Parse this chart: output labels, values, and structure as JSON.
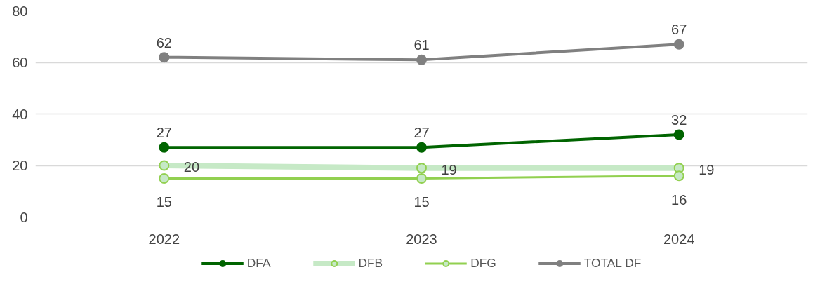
{
  "chart_data": {
    "type": "line",
    "categories": [
      "2022",
      "2023",
      "2024"
    ],
    "series": [
      {
        "name": "DFA",
        "color": "#006400",
        "values": [
          27,
          27,
          32
        ]
      },
      {
        "name": "DFB",
        "color": "#c6e9c6",
        "values": [
          20,
          19,
          19
        ]
      },
      {
        "name": "DFG",
        "color": "#92d050",
        "values": [
          15,
          15,
          16
        ]
      },
      {
        "name": "TOTAL DF",
        "color": "#808080",
        "values": [
          62,
          61,
          67
        ]
      }
    ],
    "ylim": [
      0,
      80
    ],
    "yticks": [
      0,
      20,
      40,
      60,
      80
    ],
    "grid": "y",
    "legend": "bottom",
    "marker": "circle",
    "line_style": "solid",
    "data_labels": true
  }
}
